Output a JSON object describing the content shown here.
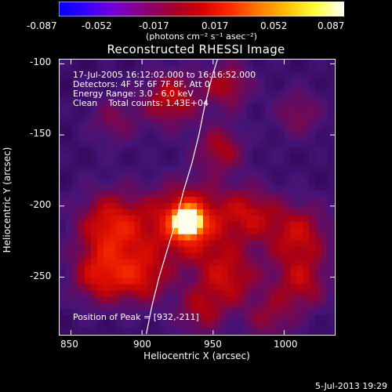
{
  "colorbar": {
    "colors": [
      "#0000ff",
      "#3a00ff",
      "#7a00d0",
      "#8a007a",
      "#a00030",
      "#d40000",
      "#ff2a00",
      "#ff7a00",
      "#ffc000",
      "#ffff40",
      "#ffffff"
    ],
    "ticks": [
      "-0.087",
      "-0.052",
      "-0.017",
      "0.017",
      "0.052",
      "0.087"
    ],
    "units": "(photons cm⁻² s⁻¹ asec⁻²)"
  },
  "title": "Reconstructed RHESSI Image",
  "info": {
    "time_range": "17-Jul-2005 16:12:02.000 to 16:16:52.000",
    "detectors": "Detectors: 4F 5F 6F 7F 8F, Att 0",
    "energy": "Energy Range: 3.0 - 6.0 keV",
    "clean": "Clean    Total counts: 1.43E+04",
    "peak": "Position of Peak = [932,-211]"
  },
  "axes": {
    "xlabel": "Heliocentric X (arcsec)",
    "ylabel": "Heliocentric Y (arcsec)",
    "xticks": [
      "850",
      "900",
      "950",
      "1000"
    ],
    "yticks": [
      "-100",
      "-150",
      "-200",
      "-250"
    ]
  },
  "chart_data": {
    "type": "heatmap",
    "title": "Reconstructed RHESSI Image",
    "xlabel": "Heliocentric X (arcsec)",
    "ylabel": "Heliocentric Y (arcsec)",
    "xlim": [
      842,
      1035
    ],
    "ylim": [
      -290,
      -97
    ],
    "xticks": [
      850,
      900,
      950,
      1000
    ],
    "yticks": [
      -100,
      -150,
      -200,
      -250
    ],
    "color_range": [
      -0.087,
      0.087
    ],
    "peak": {
      "x": 932,
      "y": -211
    },
    "blobs": [
      {
        "x": 932,
        "y": -211,
        "amp": 1.0,
        "sigma": 6
      },
      {
        "x": 932,
        "y": -211,
        "amp": 0.55,
        "sigma": 18
      },
      {
        "x": 880,
        "y": -215,
        "amp": 0.45,
        "sigma": 18
      },
      {
        "x": 870,
        "y": -250,
        "amp": 0.35,
        "sigma": 14
      },
      {
        "x": 900,
        "y": -250,
        "amp": 0.35,
        "sigma": 14
      },
      {
        "x": 960,
        "y": -250,
        "amp": 0.35,
        "sigma": 16
      },
      {
        "x": 975,
        "y": -205,
        "amp": 0.32,
        "sigma": 14
      },
      {
        "x": 1010,
        "y": -220,
        "amp": 0.35,
        "sigma": 16
      },
      {
        "x": 1012,
        "y": -255,
        "amp": 0.3,
        "sigma": 14
      },
      {
        "x": 955,
        "y": -160,
        "amp": 0.3,
        "sigma": 12
      },
      {
        "x": 920,
        "y": -125,
        "amp": 0.35,
        "sigma": 14
      },
      {
        "x": 960,
        "y": -115,
        "amp": 0.3,
        "sigma": 12
      },
      {
        "x": 1010,
        "y": -135,
        "amp": 0.22,
        "sigma": 12
      },
      {
        "x": 880,
        "y": -140,
        "amp": 0.2,
        "sigma": 12
      },
      {
        "x": 940,
        "y": -275,
        "amp": 0.25,
        "sigma": 12
      },
      {
        "x": 990,
        "y": -280,
        "amp": 0.22,
        "sigma": 12
      }
    ],
    "limb": [
      [
        903,
        -290
      ],
      [
        907,
        -270
      ],
      [
        912,
        -250
      ],
      [
        918,
        -230
      ],
      [
        924,
        -210
      ],
      [
        929,
        -190
      ],
      [
        935,
        -170
      ],
      [
        940,
        -150
      ],
      [
        944,
        -130
      ],
      [
        949,
        -110
      ],
      [
        953,
        -97
      ]
    ]
  },
  "footer": {
    "date": "5-Jul-2013 19:29"
  }
}
